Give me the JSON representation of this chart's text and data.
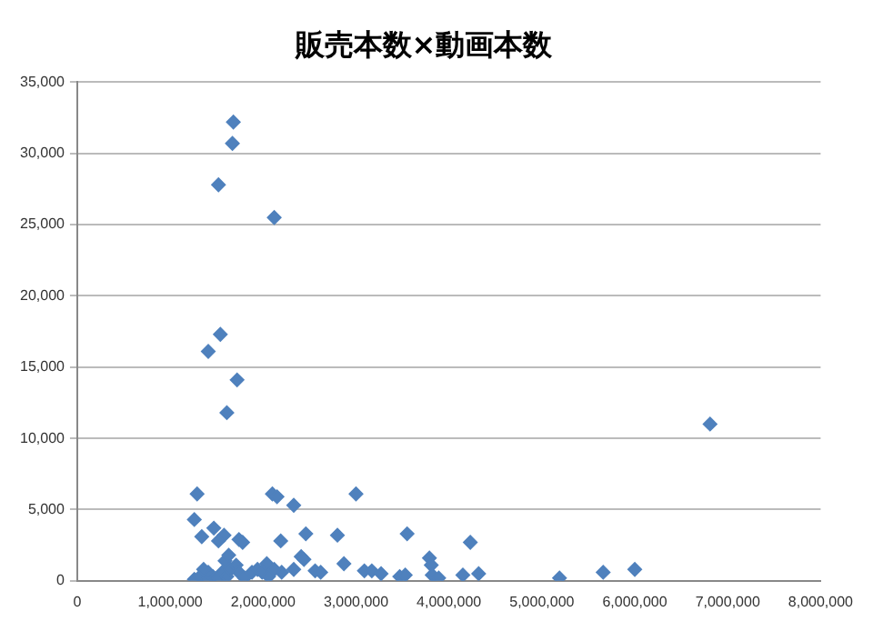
{
  "chart_data": {
    "type": "scatter",
    "title": "販売本数×動画本数",
    "grid": "y",
    "legend": false,
    "marker": "diamond",
    "xlim": [
      0,
      8000000
    ],
    "xticks": [
      0,
      {
        "value": 1000000,
        "label": "1,000,000"
      },
      {
        "value": 2000000,
        "label": "2,000,000"
      },
      {
        "value": 3000000,
        "label": "3,000,000"
      },
      {
        "value": 4000000,
        "label": "4,000,000"
      },
      {
        "value": 5000000,
        "label": "5,000,000"
      },
      {
        "value": 6000000,
        "label": "6,000,000"
      },
      {
        "value": 7000000,
        "label": "7,000,000"
      },
      {
        "value": 8000000,
        "label": "8,000,000"
      }
    ],
    "ylim": [
      0,
      35000
    ],
    "yticks": [
      0,
      {
        "value": 5000,
        "label": "5,000"
      },
      {
        "value": 10000,
        "label": "10,000"
      },
      {
        "value": 15000,
        "label": "15,000"
      },
      {
        "value": 20000,
        "label": "20,000"
      },
      {
        "value": 25000,
        "label": "25,000"
      },
      {
        "value": 30000,
        "label": "30,000"
      },
      {
        "value": 35000,
        "label": "35,000"
      }
    ],
    "series": [
      {
        "color": "#4f81bd",
        "x": [
          1680000,
          1670000,
          1520000,
          2120000,
          1540000,
          1410000,
          1720000,
          1610000,
          6810000,
          1290000,
          2100000,
          2150000,
          2330000,
          3000000,
          1260000,
          1470000,
          1580000,
          1520000,
          1340000,
          1740000,
          1780000,
          2190000,
          2460000,
          2800000,
          3550000,
          4230000,
          2410000,
          2440000,
          2870000,
          2200000,
          2330000,
          2560000,
          2620000,
          3090000,
          3170000,
          3270000,
          3470000,
          3530000,
          3790000,
          3810000,
          3820000,
          3890000,
          4150000,
          4320000,
          5190000,
          5660000,
          6000000,
          1260000,
          1320000,
          1400000,
          1460000,
          1520000,
          1560000,
          1610000,
          1650000,
          1710000,
          1740000,
          1800000,
          1880000,
          1940000,
          1990000,
          2040000,
          2060000,
          2120000,
          1410000,
          1360000,
          1590000,
          1630000
        ],
        "values": [
          32200,
          30700,
          27800,
          25500,
          17300,
          16100,
          14100,
          11800,
          11000,
          6100,
          6100,
          5900,
          5300,
          6100,
          4300,
          3700,
          3200,
          2800,
          3100,
          2900,
          2700,
          2800,
          3300,
          3200,
          3300,
          2700,
          1700,
          1500,
          1200,
          600,
          800,
          700,
          600,
          700,
          700,
          500,
          300,
          400,
          1600,
          1100,
          400,
          200,
          400,
          500,
          200,
          600,
          800,
          100,
          300,
          100,
          300,
          200,
          600,
          300,
          800,
          1100,
          600,
          200,
          600,
          800,
          600,
          1200,
          300,
          800,
          600,
          800,
          1400,
          1800
        ]
      }
    ]
  }
}
